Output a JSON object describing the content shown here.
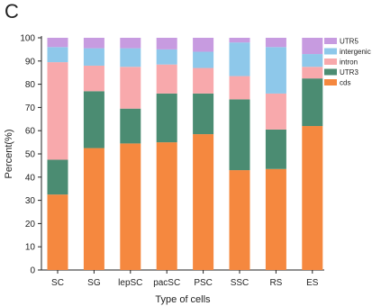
{
  "panel_label": "C",
  "chart_data": {
    "type": "bar",
    "stacked": true,
    "title": "",
    "xlabel": "Type of cells",
    "ylabel": "Percent(%)",
    "ylim": [
      0,
      100
    ],
    "yticks": [
      0,
      10,
      20,
      30,
      40,
      50,
      60,
      70,
      80,
      90,
      100
    ],
    "categories": [
      "SC",
      "SG",
      "lepSC",
      "pacSC",
      "PSC",
      "SSC",
      "RS",
      "ES"
    ],
    "legend_position": "top-right",
    "series": [
      {
        "name": "cds",
        "color": "#f5883f",
        "values": [
          32.5,
          52.5,
          54.5,
          55.0,
          58.5,
          43.0,
          43.5,
          62.0
        ]
      },
      {
        "name": "UTR3",
        "color": "#4b8c72",
        "values": [
          15.0,
          24.5,
          15.0,
          21.0,
          17.5,
          30.5,
          17.0,
          20.5
        ]
      },
      {
        "name": "intron",
        "color": "#f8a9ac",
        "values": [
          42.0,
          11.0,
          18.0,
          12.5,
          11.0,
          10.0,
          15.5,
          5.0
        ]
      },
      {
        "name": "intergenic",
        "color": "#8ec8ea",
        "values": [
          6.5,
          7.5,
          8.0,
          6.5,
          7.0,
          14.5,
          20.0,
          5.5
        ]
      },
      {
        "name": "UTR5",
        "color": "#c79be0",
        "values": [
          4.0,
          4.5,
          4.5,
          5.0,
          6.0,
          2.0,
          4.0,
          7.0
        ]
      }
    ],
    "legend_order": [
      "UTR5",
      "intergenic",
      "intron",
      "UTR3",
      "cds"
    ]
  }
}
